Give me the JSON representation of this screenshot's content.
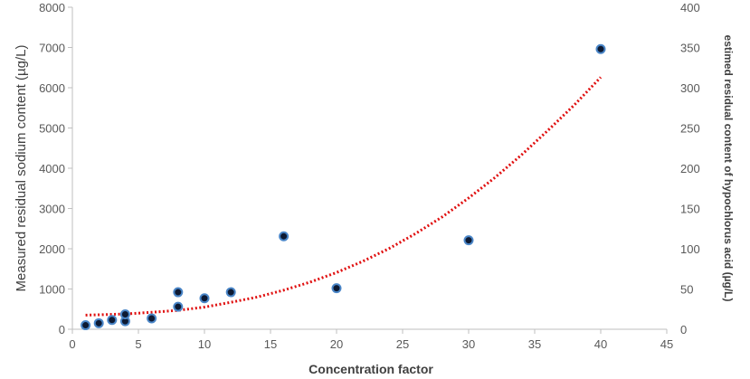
{
  "chart_data": {
    "type": "scatter",
    "title": "",
    "xlabel": "Concentration factor",
    "ylabel": "Measured  residual sodium content  (µg/L)",
    "y2label": "estimed residual content of hypochlorus acid (µg/L)",
    "xlim": [
      0,
      45
    ],
    "ylim": [
      0,
      8000
    ],
    "y2lim": [
      0,
      400
    ],
    "x_ticks": [
      0,
      5,
      10,
      15,
      20,
      25,
      30,
      35,
      40,
      45
    ],
    "y_ticks": [
      0,
      1000,
      2000,
      3000,
      4000,
      5000,
      6000,
      7000,
      8000
    ],
    "y2_ticks": [
      0,
      50,
      100,
      150,
      200,
      250,
      300,
      350,
      400
    ],
    "grid": false,
    "legend": "none",
    "points": [
      {
        "x": 1,
        "y": 100
      },
      {
        "x": 2,
        "y": 150
      },
      {
        "x": 3,
        "y": 230
      },
      {
        "x": 4,
        "y": 200
      },
      {
        "x": 4,
        "y": 370
      },
      {
        "x": 6,
        "y": 270
      },
      {
        "x": 8,
        "y": 560
      },
      {
        "x": 8,
        "y": 920
      },
      {
        "x": 10,
        "y": 770
      },
      {
        "x": 12,
        "y": 920
      },
      {
        "x": 16,
        "y": 2310
      },
      {
        "x": 20,
        "y": 1020
      },
      {
        "x": 30,
        "y": 2210
      },
      {
        "x": 40,
        "y": 6960
      }
    ],
    "trendline": {
      "type": "polynomial",
      "x": [
        1,
        2,
        4,
        6,
        8,
        10,
        12,
        14,
        16,
        18,
        20,
        22,
        24,
        26,
        28,
        30,
        32,
        34,
        36,
        38,
        40
      ],
      "y": [
        350,
        360,
        380,
        420,
        470,
        550,
        670,
        800,
        970,
        1170,
        1410,
        1690,
        2010,
        2380,
        2790,
        3260,
        3770,
        4330,
        4940,
        5570,
        6260
      ]
    },
    "colors": {
      "marker_fill": "#0d1a33",
      "marker_edge": "#4a86c8",
      "trendline": "#e01010",
      "axis": "#bfbfbf",
      "tick_text": "#595959"
    }
  }
}
